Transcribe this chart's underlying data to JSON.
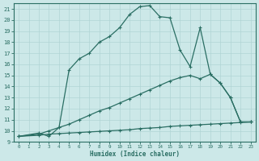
{
  "xlabel": "Humidex (Indice chaleur)",
  "line_color": "#2a6e63",
  "bg_color": "#cce8e8",
  "grid_color": "#b0d4d4",
  "xlim": [
    -0.5,
    23.5
  ],
  "ylim": [
    9,
    21.5
  ],
  "xticks": [
    0,
    1,
    2,
    3,
    4,
    5,
    6,
    7,
    8,
    9,
    10,
    11,
    12,
    13,
    14,
    15,
    16,
    17,
    18,
    19,
    20,
    21,
    22,
    23
  ],
  "yticks": [
    9,
    10,
    11,
    12,
    13,
    14,
    15,
    16,
    17,
    18,
    19,
    20,
    21
  ],
  "curve1_x": [
    0,
    2,
    3,
    4,
    5,
    6,
    7,
    8,
    9,
    10,
    11,
    12,
    13,
    14,
    15,
    16,
    17,
    18,
    19,
    20,
    21,
    22,
    23
  ],
  "curve1_y": [
    9.5,
    9.8,
    9.5,
    10.3,
    15.5,
    16.5,
    17.0,
    18.0,
    18.5,
    19.3,
    20.5,
    21.2,
    21.3,
    20.3,
    20.2,
    17.3,
    15.8,
    19.3,
    15.1,
    14.3,
    13.0,
    10.8,
    10.8
  ],
  "curve2_x": [
    0,
    2,
    3,
    4,
    5,
    6,
    7,
    8,
    9,
    10,
    11,
    12,
    13,
    14,
    15,
    16,
    17,
    18,
    19,
    20,
    21,
    22,
    23
  ],
  "curve2_y": [
    9.5,
    9.7,
    10.0,
    10.3,
    10.6,
    11.0,
    11.4,
    11.8,
    12.1,
    12.5,
    12.9,
    13.3,
    13.7,
    14.1,
    14.5,
    14.8,
    15.0,
    14.7,
    15.1,
    14.3,
    13.0,
    10.8,
    10.8
  ],
  "curve3_x": [
    0,
    2,
    3,
    4,
    5,
    6,
    7,
    8,
    9,
    10,
    11,
    12,
    13,
    14,
    15,
    16,
    17,
    18,
    19,
    20,
    21,
    22,
    23
  ],
  "curve3_y": [
    9.5,
    9.6,
    9.7,
    9.75,
    9.8,
    9.85,
    9.9,
    9.95,
    10.0,
    10.05,
    10.1,
    10.2,
    10.25,
    10.3,
    10.4,
    10.45,
    10.5,
    10.55,
    10.6,
    10.65,
    10.7,
    10.75,
    10.8
  ]
}
